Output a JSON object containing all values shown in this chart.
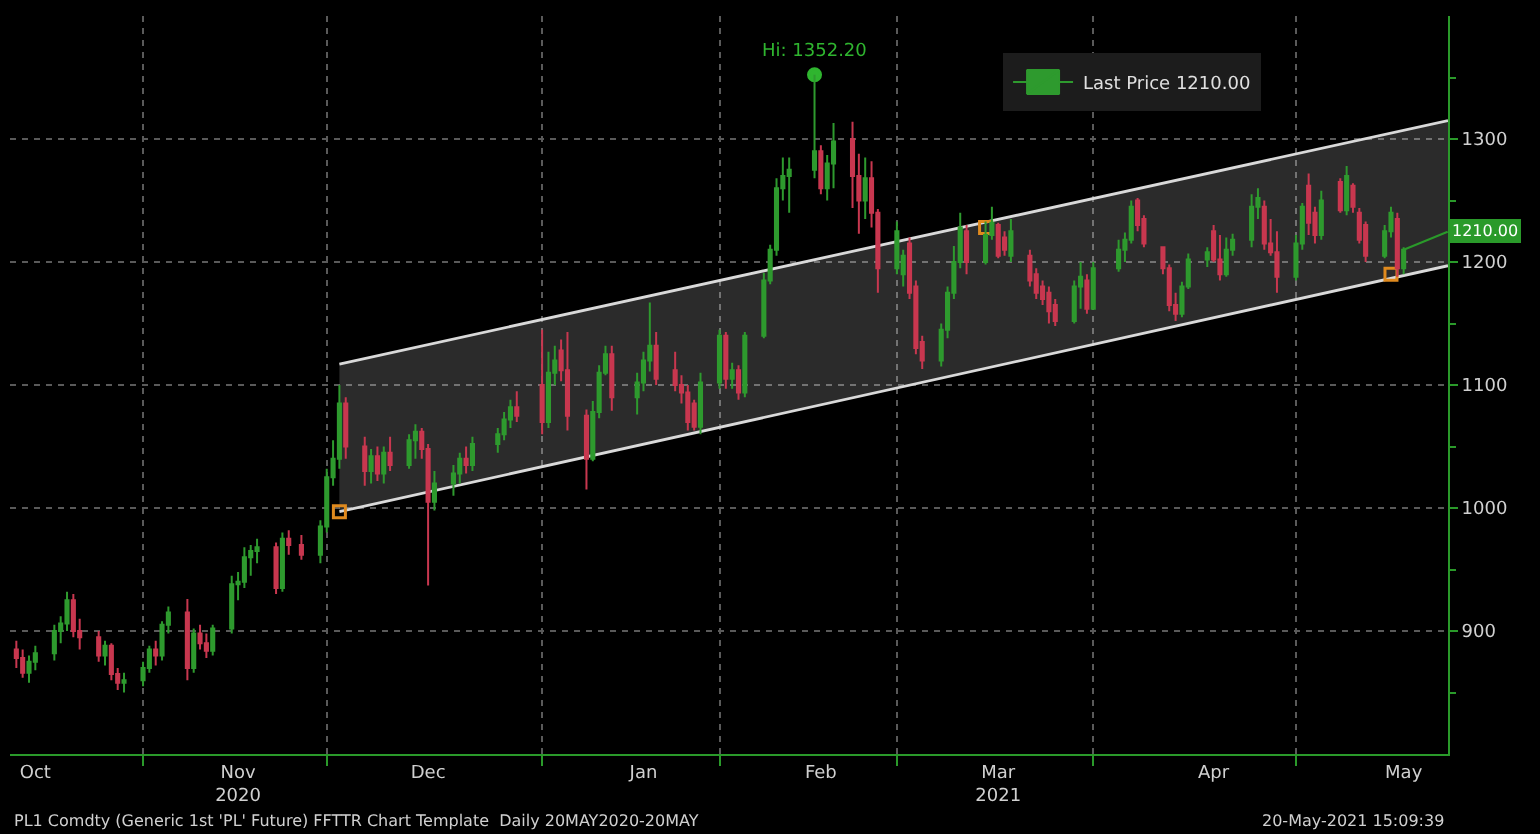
{
  "chart_data": {
    "type": "candlestick",
    "x": [
      "2020-10-13",
      "2020-10-14",
      "2020-10-15",
      "2020-10-16",
      "2020-10-19",
      "2020-10-20",
      "2020-10-21",
      "2020-10-22",
      "2020-10-23",
      "2020-10-26",
      "2020-10-27",
      "2020-10-28",
      "2020-10-29",
      "2020-10-30",
      "2020-11-02",
      "2020-11-03",
      "2020-11-04",
      "2020-11-05",
      "2020-11-06",
      "2020-11-09",
      "2020-11-10",
      "2020-11-11",
      "2020-11-12",
      "2020-11-13",
      "2020-11-16",
      "2020-11-17",
      "2020-11-18",
      "2020-11-19",
      "2020-11-20",
      "2020-11-23",
      "2020-11-24",
      "2020-11-25",
      "2020-11-27",
      "2020-11-30",
      "2020-12-01",
      "2020-12-02",
      "2020-12-03",
      "2020-12-04",
      "2020-12-07",
      "2020-12-08",
      "2020-12-09",
      "2020-12-10",
      "2020-12-11",
      "2020-12-14",
      "2020-12-15",
      "2020-12-16",
      "2020-12-17",
      "2020-12-18",
      "2020-12-21",
      "2020-12-22",
      "2020-12-23",
      "2020-12-24",
      "2020-12-28",
      "2020-12-29",
      "2020-12-30",
      "2020-12-31",
      "2021-01-04",
      "2021-01-05",
      "2021-01-06",
      "2021-01-07",
      "2021-01-08",
      "2021-01-11",
      "2021-01-12",
      "2021-01-13",
      "2021-01-14",
      "2021-01-15",
      "2021-01-19",
      "2021-01-20",
      "2021-01-21",
      "2021-01-22",
      "2021-01-25",
      "2021-01-26",
      "2021-01-27",
      "2021-01-28",
      "2021-01-29",
      "2021-02-01",
      "2021-02-02",
      "2021-02-03",
      "2021-02-04",
      "2021-02-05",
      "2021-02-08",
      "2021-02-09",
      "2021-02-10",
      "2021-02-11",
      "2021-02-12",
      "2021-02-16",
      "2021-02-17",
      "2021-02-18",
      "2021-02-19",
      "2021-02-22",
      "2021-02-23",
      "2021-02-24",
      "2021-02-25",
      "2021-02-26",
      "2021-03-01",
      "2021-03-02",
      "2021-03-03",
      "2021-03-04",
      "2021-03-05",
      "2021-03-08",
      "2021-03-09",
      "2021-03-10",
      "2021-03-11",
      "2021-03-12",
      "2021-03-15",
      "2021-03-16",
      "2021-03-17",
      "2021-03-18",
      "2021-03-19",
      "2021-03-22",
      "2021-03-23",
      "2021-03-24",
      "2021-03-25",
      "2021-03-26",
      "2021-03-29",
      "2021-03-30",
      "2021-03-31",
      "2021-04-01",
      "2021-04-05",
      "2021-04-06",
      "2021-04-07",
      "2021-04-08",
      "2021-04-09",
      "2021-04-12",
      "2021-04-13",
      "2021-04-14",
      "2021-04-15",
      "2021-04-16",
      "2021-04-19",
      "2021-04-20",
      "2021-04-21",
      "2021-04-22",
      "2021-04-23",
      "2021-04-26",
      "2021-04-27",
      "2021-04-28",
      "2021-04-29",
      "2021-04-30",
      "2021-05-03",
      "2021-05-04",
      "2021-05-05",
      "2021-05-06",
      "2021-05-07",
      "2021-05-10",
      "2021-05-11",
      "2021-05-12",
      "2021-05-13",
      "2021-05-14",
      "2021-05-17",
      "2021-05-18",
      "2021-05-19",
      "2021-05-20"
    ],
    "series": [
      {
        "name": "Last Price 1210.00",
        "type": "candlestick",
        "colors": [
          "#c8374f",
          "#c8374f",
          "#2e9a2e",
          "#2e9a2e",
          "#2e9a2e",
          "#2e9a2e",
          "#2e9a2e",
          "#c8374f",
          "#c8374f",
          "#c8374f",
          "#2e9a2e",
          "#c8374f",
          "#c8374f",
          "#2e9a2e",
          "#2e9a2e",
          "#2e9a2e",
          "#c8374f",
          "#2e9a2e",
          "#2e9a2e",
          "#c8374f",
          "#2e9a2e",
          "#c8374f",
          "#c8374f",
          "#2e9a2e",
          "#2e9a2e",
          "#2e9a2e",
          "#2e9a2e",
          "#2e9a2e",
          "#2e9a2e",
          "#c8374f",
          "#2e9a2e",
          "#c8374f",
          "#c8374f",
          "#2e9a2e",
          "#2e9a2e",
          "#2e9a2e",
          "#2e9a2e",
          "#c8374f",
          "#c8374f",
          "#2e9a2e",
          "#c8374f",
          "#2e9a2e",
          "#c8374f",
          "#2e9a2e",
          "#2e9a2e",
          "#c8374f",
          "#c8374f",
          "#2e9a2e",
          "#2e9a2e",
          "#2e9a2e",
          "#c8374f",
          "#2e9a2e",
          "#2e9a2e",
          "#2e9a2e",
          "#2e9a2e",
          "#c8374f",
          "#c8374f",
          "#2e9a2e",
          "#2e9a2e",
          "#c8374f",
          "#c8374f",
          "#c8374f",
          "#2e9a2e",
          "#2e9a2e",
          "#2e9a2e",
          "#c8374f",
          "#2e9a2e",
          "#2e9a2e",
          "#2e9a2e",
          "#c8374f",
          "#c8374f",
          "#c8374f",
          "#c8374f",
          "#c8374f",
          "#2e9a2e",
          "#2e9a2e",
          "#c8374f",
          "#2e9a2e",
          "#c8374f",
          "#2e9a2e",
          "#2e9a2e",
          "#2e9a2e",
          "#2e9a2e",
          "#2e9a2e",
          "#2e9a2e",
          "#2e9a2e",
          "#c8374f",
          "#2e9a2e",
          "#2e9a2e",
          "#c8374f",
          "#c8374f",
          "#2e9a2e",
          "#c8374f",
          "#c8374f",
          "#2e9a2e",
          "#2e9a2e",
          "#c8374f",
          "#c8374f",
          "#c8374f",
          "#2e9a2e",
          "#2e9a2e",
          "#2e9a2e",
          "#2e9a2e",
          "#c8374f",
          "#2e9a2e",
          "#2e9a2e",
          "#c8374f",
          "#c8374f",
          "#2e9a2e",
          "#c8374f",
          "#c8374f",
          "#c8374f",
          "#c8374f",
          "#c8374f",
          "#2e9a2e",
          "#2e9a2e",
          "#c8374f",
          "#2e9a2e",
          "#2e9a2e",
          "#2e9a2e",
          "#2e9a2e",
          "#c8374f",
          "#c8374f",
          "#c8374f",
          "#c8374f",
          "#c8374f",
          "#2e9a2e",
          "#2e9a2e",
          "#2e9a2e",
          "#c8374f",
          "#c8374f",
          "#2e9a2e",
          "#2e9a2e",
          "#2e9a2e",
          "#2e9a2e",
          "#c8374f",
          "#c8374f",
          "#c8374f",
          "#2e9a2e",
          "#2e9a2e",
          "#c8374f",
          "#c8374f",
          "#2e9a2e",
          "#c8374f",
          "#2e9a2e",
          "#c8374f",
          "#c8374f",
          "#c8374f",
          "#2e9a2e",
          "#2e9a2e",
          "#c8374f",
          "#2e9a2e"
        ],
        "ohlc": [
          [
            885,
            892,
            870,
            878
          ],
          [
            878,
            885,
            862,
            866
          ],
          [
            866,
            880,
            858,
            875
          ],
          [
            875,
            888,
            868,
            882
          ],
          [
            882,
            905,
            876,
            900
          ],
          [
            900,
            912,
            890,
            906
          ],
          [
            906,
            932,
            900,
            925
          ],
          [
            925,
            930,
            895,
            900
          ],
          [
            900,
            910,
            885,
            895
          ],
          [
            895,
            900,
            875,
            880
          ],
          [
            880,
            892,
            872,
            888
          ],
          [
            888,
            890,
            860,
            865
          ],
          [
            865,
            870,
            852,
            858
          ],
          [
            858,
            866,
            850,
            860
          ],
          [
            860,
            875,
            855,
            870
          ],
          [
            870,
            888,
            866,
            885
          ],
          [
            885,
            892,
            872,
            880
          ],
          [
            880,
            908,
            876,
            905
          ],
          [
            905,
            920,
            898,
            915
          ],
          [
            915,
            926,
            860,
            870
          ],
          [
            870,
            902,
            866,
            898
          ],
          [
            898,
            905,
            885,
            890
          ],
          [
            890,
            898,
            878,
            884
          ],
          [
            884,
            905,
            880,
            902
          ],
          [
            902,
            945,
            898,
            938
          ],
          [
            938,
            948,
            925,
            940
          ],
          [
            940,
            968,
            935,
            960
          ],
          [
            960,
            970,
            945,
            965
          ],
          [
            965,
            975,
            955,
            968
          ],
          [
            968,
            972,
            930,
            935
          ],
          [
            935,
            980,
            932,
            975
          ],
          [
            975,
            982,
            962,
            970
          ],
          [
            970,
            978,
            958,
            962
          ],
          [
            962,
            990,
            955,
            985
          ],
          [
            985,
            1032,
            980,
            1025
          ],
          [
            1025,
            1055,
            1018,
            1040
          ],
          [
            1040,
            1100,
            1032,
            1085
          ],
          [
            1085,
            1090,
            1040,
            1050
          ],
          [
            1050,
            1058,
            1018,
            1030
          ],
          [
            1030,
            1048,
            1020,
            1042
          ],
          [
            1042,
            1050,
            1022,
            1028
          ],
          [
            1028,
            1050,
            1020,
            1045
          ],
          [
            1045,
            1058,
            1030,
            1035
          ],
          [
            1035,
            1060,
            1032,
            1055
          ],
          [
            1055,
            1068,
            1040,
            1062
          ],
          [
            1062,
            1065,
            1040,
            1048
          ],
          [
            1048,
            1052,
            937,
            1005
          ],
          [
            1005,
            1030,
            998,
            1020
          ],
          [
            1020,
            1035,
            1010,
            1028
          ],
          [
            1028,
            1045,
            1020,
            1040
          ],
          [
            1040,
            1050,
            1028,
            1035
          ],
          [
            1035,
            1058,
            1030,
            1052
          ],
          [
            1052,
            1065,
            1045,
            1060
          ],
          [
            1060,
            1078,
            1055,
            1072
          ],
          [
            1072,
            1088,
            1065,
            1082
          ],
          [
            1082,
            1095,
            1070,
            1075
          ],
          [
            1100,
            1145,
            1060,
            1070
          ],
          [
            1070,
            1127,
            1065,
            1110
          ],
          [
            1110,
            1132,
            1100,
            1120
          ],
          [
            1128,
            1137,
            1103,
            1112
          ],
          [
            1112,
            1143,
            1063,
            1075
          ],
          [
            1075,
            1080,
            1015,
            1040
          ],
          [
            1040,
            1087,
            1038,
            1078
          ],
          [
            1078,
            1116,
            1073,
            1110
          ],
          [
            1110,
            1132,
            1108,
            1125
          ],
          [
            1125,
            1132,
            1079,
            1090
          ],
          [
            1090,
            1110,
            1076,
            1102
          ],
          [
            1102,
            1127,
            1095,
            1120
          ],
          [
            1120,
            1167,
            1111,
            1132
          ],
          [
            1132,
            1143,
            1100,
            1105
          ],
          [
            1112,
            1127,
            1095,
            1100
          ],
          [
            1100,
            1108,
            1085,
            1094
          ],
          [
            1094,
            1100,
            1063,
            1070
          ],
          [
            1085,
            1088,
            1063,
            1066
          ],
          [
            1066,
            1110,
            1060,
            1102
          ],
          [
            1102,
            1145,
            1097,
            1140
          ],
          [
            1140,
            1143,
            1097,
            1105
          ],
          [
            1105,
            1118,
            1097,
            1112
          ],
          [
            1112,
            1116,
            1088,
            1094
          ],
          [
            1094,
            1143,
            1090,
            1140
          ],
          [
            1140,
            1191,
            1138,
            1185
          ],
          [
            1185,
            1214,
            1182,
            1210
          ],
          [
            1210,
            1268,
            1205,
            1260
          ],
          [
            1260,
            1285,
            1250,
            1270
          ],
          [
            1270,
            1285,
            1240,
            1275
          ],
          [
            1275,
            1352.2,
            1268,
            1290
          ],
          [
            1290,
            1295,
            1255,
            1260
          ],
          [
            1260,
            1287,
            1250,
            1280
          ],
          [
            1280,
            1313,
            1260,
            1298
          ],
          [
            1300,
            1314,
            1244,
            1270
          ],
          [
            1270,
            1288,
            1223,
            1250
          ],
          [
            1250,
            1285,
            1235,
            1268
          ],
          [
            1268,
            1282,
            1228,
            1240
          ],
          [
            1240,
            1243,
            1175,
            1195
          ],
          [
            1195,
            1233,
            1190,
            1225
          ],
          [
            1190,
            1210,
            1180,
            1205
          ],
          [
            1215,
            1220,
            1170,
            1175
          ],
          [
            1180,
            1185,
            1125,
            1130
          ],
          [
            1135,
            1140,
            1113,
            1120
          ],
          [
            1120,
            1150,
            1115,
            1145
          ],
          [
            1145,
            1180,
            1138,
            1175
          ],
          [
            1175,
            1213,
            1170,
            1200
          ],
          [
            1200,
            1240,
            1195,
            1228
          ],
          [
            1225,
            1230,
            1190,
            1200
          ],
          [
            1200,
            1233,
            1198,
            1222
          ],
          [
            1222,
            1245,
            1218,
            1232
          ],
          [
            1230,
            1232,
            1203,
            1205
          ],
          [
            1220,
            1225,
            1205,
            1210
          ],
          [
            1205,
            1235,
            1200,
            1225
          ],
          [
            1205,
            1210,
            1180,
            1185
          ],
          [
            1190,
            1195,
            1170,
            1175
          ],
          [
            1180,
            1185,
            1165,
            1170
          ],
          [
            1175,
            1180,
            1150,
            1160
          ],
          [
            1165,
            1170,
            1148,
            1152
          ],
          [
            1152,
            1185,
            1150,
            1180
          ],
          [
            1180,
            1200,
            1162,
            1188
          ],
          [
            1185,
            1190,
            1158,
            1162
          ],
          [
            1162,
            1200,
            1162,
            1195
          ],
          [
            1195,
            1218,
            1192,
            1210
          ],
          [
            1210,
            1224,
            1200,
            1218
          ],
          [
            1218,
            1250,
            1215,
            1245
          ],
          [
            1250,
            1252,
            1225,
            1230
          ],
          [
            1235,
            1238,
            1212,
            1215
          ],
          [
            1212,
            1212,
            1190,
            1195
          ],
          [
            1195,
            1198,
            1160,
            1165
          ],
          [
            1165,
            1175,
            1152,
            1158
          ],
          [
            1158,
            1184,
            1155,
            1180
          ],
          [
            1180,
            1207,
            1178,
            1202
          ],
          [
            1202,
            1212,
            1196,
            1208
          ],
          [
            1225,
            1230,
            1200,
            1202
          ],
          [
            1202,
            1222,
            1185,
            1190
          ],
          [
            1190,
            1220,
            1188,
            1210
          ],
          [
            1210,
            1223,
            1205,
            1218
          ],
          [
            1218,
            1255,
            1212,
            1245
          ],
          [
            1245,
            1260,
            1235,
            1252
          ],
          [
            1245,
            1250,
            1210,
            1215
          ],
          [
            1215,
            1235,
            1205,
            1208
          ],
          [
            1208,
            1225,
            1175,
            1188
          ],
          [
            1188,
            1222,
            1185,
            1215
          ],
          [
            1215,
            1248,
            1210,
            1245
          ],
          [
            1262,
            1272,
            1222,
            1232
          ],
          [
            1240,
            1245,
            1215,
            1222
          ],
          [
            1222,
            1258,
            1218,
            1250
          ],
          [
            1265,
            1268,
            1240,
            1242
          ],
          [
            1242,
            1278,
            1238,
            1270
          ],
          [
            1262,
            1264,
            1240,
            1245
          ],
          [
            1240,
            1244,
            1215,
            1218
          ],
          [
            1230,
            1233,
            1200,
            1205
          ],
          [
            1205,
            1230,
            1203,
            1225
          ],
          [
            1225,
            1245,
            1220,
            1240
          ],
          [
            1235,
            1240,
            1188,
            1195
          ],
          [
            1195,
            1212,
            1190,
            1210
          ]
        ]
      },
      {
        "type": "line",
        "color": "#d9d9d9",
        "x": [
          "2020-12-03",
          "2021-05-27"
        ],
        "values": [
          997,
          1197
        ]
      },
      {
        "type": "area",
        "color": "#d9d9d9",
        "x": [
          "2020-12-03",
          "2021-05-27"
        ],
        "values": [
          1117,
          1315
        ]
      },
      {
        "type": "scatter",
        "marker": "square",
        "color": "#e08a1e",
        "x": [
          "2020-12-03",
          "2021-03-15",
          "2021-05-18"
        ],
        "values": [
          997,
          1228,
          1190
        ]
      },
      {
        "type": "scatter",
        "marker": "circle",
        "color": "#2fb52f",
        "x": [
          "2021-02-16"
        ],
        "values": [
          1352.2
        ]
      }
    ],
    "xlim": [
      "2020-10-12",
      "2021-05-27"
    ],
    "xticks": [
      {
        "value": "2020-10-16",
        "label": "Oct"
      },
      {
        "value": "2020-11-02",
        "label": null
      },
      {
        "value": "2020-11-17",
        "label": "Nov\n2020"
      },
      {
        "value": "2020-12-01",
        "label": null
      },
      {
        "value": "2020-12-17",
        "label": "Dec"
      },
      {
        "value": "2021-01-04",
        "label": null
      },
      {
        "value": "2021-01-20",
        "label": "Jan"
      },
      {
        "value": "2021-02-01",
        "label": null
      },
      {
        "value": "2021-02-17",
        "label": "Feb"
      },
      {
        "value": "2021-03-01",
        "label": null
      },
      {
        "value": "2021-03-17",
        "label": "Mar\n2021"
      },
      {
        "value": "2021-04-01",
        "label": null
      },
      {
        "value": "2021-04-20",
        "label": "Apr"
      },
      {
        "value": "2021-05-03",
        "label": null
      },
      {
        "value": "2021-05-20",
        "label": "May"
      }
    ],
    "ylim": [
      800,
      1400
    ],
    "yticks": [
      {
        "value": 850,
        "label": null
      },
      900,
      {
        "value": 950,
        "label": null
      },
      1000,
      {
        "value": 1050,
        "label": null
      },
      1100,
      {
        "value": 1150,
        "label": null
      },
      1200,
      {
        "value": 1250,
        "label": null
      },
      1300,
      {
        "value": 1350,
        "label": null
      }
    ],
    "grid": true,
    "legend": "top right",
    "annotations": [
      {
        "text": "Hi: 1352.20",
        "x": "2021-02-16",
        "y": 1352.2
      },
      {
        "text": "1210.00",
        "x": "2021-05-20",
        "y": 1210
      },
      "PL1 Comdty (Generic 1st 'PL' Future) FFTTR Chart Template  Daily 20MAY2020-20MAY",
      "20-May-2021 15:09:39"
    ]
  }
}
